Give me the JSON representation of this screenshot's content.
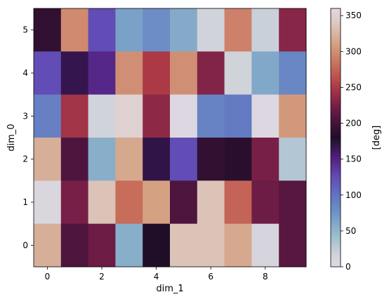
{
  "chart_data": {
    "type": "heatmap",
    "xlabel": "dim_1",
    "ylabel": "dim_0",
    "colorbar_label": "[deg]",
    "colormap": "twilight",
    "vmin": 0,
    "vmax": 360,
    "x_range": [
      -0.5,
      9.5
    ],
    "y_range": [
      -0.5,
      5.5
    ],
    "x_ticks": [
      0,
      2,
      4,
      6,
      8
    ],
    "y_ticks": [
      0,
      1,
      2,
      3,
      4,
      5
    ],
    "colorbar_ticks": [
      0,
      50,
      100,
      150,
      200,
      250,
      300,
      350
    ],
    "rows_top_to_bottom": [
      5,
      4,
      3,
      2,
      1,
      0
    ],
    "values": [
      [
        190,
        297,
        125,
        65,
        80,
        58,
        15,
        292,
        20,
        232
      ],
      [
        125,
        168,
        147,
        300,
        250,
        300,
        230,
        15,
        60,
        85
      ],
      [
        90,
        245,
        15,
        350,
        235,
        5,
        88,
        95,
        5,
        305
      ],
      [
        320,
        205,
        55,
        315,
        170,
        125,
        190,
        185,
        225,
        32
      ],
      [
        8,
        225,
        335,
        280,
        310,
        205,
        335,
        275,
        220,
        210
      ],
      [
        320,
        205,
        220,
        55,
        180,
        335,
        335,
        315,
        12,
        210
      ]
    ]
  }
}
